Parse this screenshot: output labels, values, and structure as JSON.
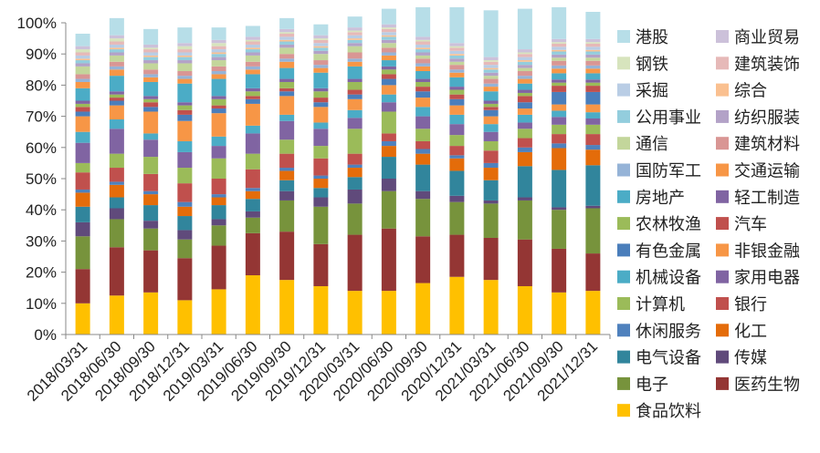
{
  "chart_data": {
    "type": "bar",
    "stacked": true,
    "normalized": true,
    "y_unit": "%",
    "ylim": [
      0,
      100
    ],
    "y_ticks": [
      "0%",
      "10%",
      "20%",
      "30%",
      "40%",
      "50%",
      "60%",
      "70%",
      "80%",
      "90%",
      "100%"
    ],
    "grid": false,
    "legend_position": "right",
    "categories": [
      "2018/03/31",
      "2018/06/30",
      "2018/09/30",
      "2018/12/31",
      "2019/03/31",
      "2019/06/30",
      "2019/09/30",
      "2019/12/31",
      "2020/03/31",
      "2020/06/30",
      "2020/09/30",
      "2020/12/31",
      "2021/03/31",
      "2021/06/30",
      "2021/09/30",
      "2021/12/31"
    ],
    "series": [
      {
        "name": "食品饮料",
        "color": "#ffc000",
        "values": [
          10,
          12.5,
          13.5,
          11,
          14.5,
          19,
          17.5,
          15.5,
          14,
          14,
          16.5,
          18.5,
          17.5,
          15.5,
          13.5,
          14
        ]
      },
      {
        "name": "医药生物",
        "color": "#943634",
        "values": [
          11,
          15.5,
          13.5,
          13.5,
          14,
          13.5,
          15.5,
          13.5,
          18,
          20,
          15,
          13.5,
          13.5,
          15,
          14,
          12
        ]
      },
      {
        "name": "电子",
        "color": "#77933c",
        "values": [
          10.5,
          9,
          7,
          6,
          6.5,
          5,
          10,
          12,
          10,
          12,
          12,
          10.5,
          11,
          12.5,
          12.5,
          14.5
        ]
      },
      {
        "name": "传媒",
        "color": "#604a7b",
        "values": [
          4.5,
          3.5,
          2.5,
          3,
          2,
          2,
          3,
          3,
          4.5,
          4,
          2.5,
          2,
          1,
          1,
          0.8,
          0.8
        ]
      },
      {
        "name": "电气设备",
        "color": "#31859c",
        "values": [
          5,
          3.5,
          5,
          4.5,
          4.5,
          4,
          3.5,
          3,
          4,
          7,
          8.5,
          8,
          6.5,
          10,
          12,
          13
        ]
      },
      {
        "name": "化工",
        "color": "#e46c0a",
        "values": [
          4.5,
          4,
          3.5,
          3,
          2.5,
          2.5,
          3,
          3,
          3,
          3.5,
          3.5,
          4,
          4,
          4.5,
          7,
          5
        ]
      },
      {
        "name": "休闲服务",
        "color": "#4f81bd",
        "values": [
          1,
          1,
          1,
          1.5,
          1,
          1,
          1,
          1,
          1,
          1.5,
          1.5,
          1,
          1.5,
          1.5,
          1.5,
          1.5
        ]
      },
      {
        "name": "银行",
        "color": "#c0504d",
        "values": [
          5.5,
          4.5,
          5.5,
          6,
          5,
          6,
          4.5,
          5.5,
          3.5,
          2.5,
          2.5,
          3,
          4,
          3,
          3,
          3.5
        ]
      },
      {
        "name": "计算机",
        "color": "#9bbb59",
        "values": [
          3,
          4.5,
          5.5,
          5,
          6.5,
          5,
          4.5,
          4,
          8,
          7,
          4,
          3.5,
          3,
          3,
          3,
          3
        ]
      },
      {
        "name": "家用电器",
        "color": "#8064a2",
        "values": [
          6.5,
          8,
          5.5,
          5,
          4,
          6.5,
          6,
          5.5,
          3.5,
          3,
          4,
          3.5,
          3,
          2,
          2.5,
          2
        ]
      },
      {
        "name": "机械设备",
        "color": "#4bacc6",
        "values": [
          3.5,
          3,
          2,
          3.5,
          3,
          2.5,
          2,
          2,
          2.5,
          2.5,
          3,
          3,
          2.5,
          2.5,
          2,
          2
        ]
      },
      {
        "name": "非银金融",
        "color": "#f79646",
        "values": [
          5,
          4.5,
          7,
          6.5,
          7.5,
          7,
          6,
          5,
          3.5,
          3,
          3,
          3,
          2.5,
          2,
          2,
          2.5
        ]
      },
      {
        "name": "有色金属",
        "color": "#4a7ebb",
        "values": [
          1.5,
          1.5,
          1.5,
          2,
          1.5,
          1.5,
          1.5,
          1.5,
          1.5,
          2,
          2,
          2,
          2,
          2,
          4,
          4
        ]
      },
      {
        "name": "汽车",
        "color": "#c0504d",
        "values": [
          1.5,
          1,
          1.5,
          1.5,
          1,
          1,
          1,
          1.5,
          1.5,
          1.5,
          1.5,
          1.5,
          1,
          2,
          2,
          2
        ]
      },
      {
        "name": "农林牧渔",
        "color": "#9bbb59",
        "values": [
          1,
          1,
          1,
          1.5,
          2,
          1.5,
          2,
          2,
          2.5,
          1.5,
          1.5,
          1.5,
          1,
          1,
          1,
          1
        ]
      },
      {
        "name": "轻工制造",
        "color": "#8064a2",
        "values": [
          1,
          1,
          1,
          1,
          1,
          1,
          1,
          1,
          1,
          1,
          1,
          1,
          1,
          1,
          1,
          1
        ]
      },
      {
        "name": "房地产",
        "color": "#4bacc6",
        "values": [
          4,
          5,
          4.5,
          6,
          5.5,
          4.5,
          3.5,
          5,
          4,
          2,
          2.5,
          3,
          3,
          2,
          2,
          2
        ]
      },
      {
        "name": "交通运输",
        "color": "#f79646",
        "values": [
          2,
          2,
          1.5,
          1.5,
          1.5,
          1.5,
          2,
          1.5,
          1.5,
          1.5,
          1.5,
          1.5,
          1.5,
          1.5,
          1.5,
          1.5
        ]
      },
      {
        "name": "国防军工",
        "color": "#95b3d7",
        "values": [
          1,
          1,
          1,
          1,
          1,
          1,
          1,
          1,
          1,
          1,
          1,
          1,
          1,
          1,
          1,
          1
        ]
      },
      {
        "name": "建筑材料",
        "color": "#d99694",
        "values": [
          1.5,
          1.5,
          1.5,
          1.5,
          1.5,
          1.5,
          1.5,
          1.5,
          2,
          1.5,
          1.5,
          1.5,
          1.5,
          1.5,
          1.5,
          1.5
        ]
      },
      {
        "name": "通信",
        "color": "#c3d69b",
        "values": [
          2.5,
          2,
          2,
          2.5,
          2,
          2,
          2,
          2,
          2,
          1.5,
          1,
          1,
          1,
          1,
          1,
          1
        ]
      },
      {
        "name": "纺织服装",
        "color": "#b3a2c7",
        "values": [
          1,
          1,
          1,
          1,
          1,
          1,
          1,
          1,
          1,
          1,
          1,
          1,
          1,
          1,
          1,
          1
        ]
      },
      {
        "name": "公用事业",
        "color": "#93cddd",
        "values": [
          1,
          1,
          1,
          1,
          1,
          1,
          1,
          1,
          1,
          1,
          1,
          1,
          1,
          1,
          1,
          1
        ]
      },
      {
        "name": "综合",
        "color": "#fac090",
        "values": [
          0.5,
          0.5,
          0.5,
          0.5,
          0.5,
          0.5,
          0.5,
          0.5,
          0.5,
          0.5,
          0.5,
          0.5,
          0.5,
          0.5,
          0.5,
          0.5
        ]
      },
      {
        "name": "采掘",
        "color": "#b9cde5",
        "values": [
          1,
          1,
          1,
          1,
          1,
          1,
          1,
          1,
          1,
          1,
          1,
          1,
          1,
          1,
          1,
          1
        ]
      },
      {
        "name": "建筑装饰",
        "color": "#e6b9b8",
        "values": [
          1,
          1,
          1,
          1,
          1,
          1,
          1,
          1,
          1,
          1,
          1,
          1,
          1,
          1,
          1,
          1
        ]
      },
      {
        "name": "钢铁",
        "color": "#d7e4bd",
        "values": [
          1,
          1,
          0.5,
          1,
          1,
          0.5,
          0.5,
          0.5,
          0.5,
          0.5,
          0.5,
          0.5,
          0.5,
          0.5,
          0.5,
          0.5
        ]
      },
      {
        "name": "商业贸易",
        "color": "#ccc1da",
        "values": [
          1,
          1,
          1,
          1,
          1,
          1,
          1,
          1,
          1,
          1,
          1,
          1,
          1,
          1,
          1,
          1
        ]
      },
      {
        "name": "港股",
        "color": "#b7dee8",
        "values": [
          4,
          5.5,
          5,
          5,
          4,
          3.5,
          3.5,
          3.5,
          3.5,
          5,
          9.5,
          11.5,
          15,
          13,
          10.2,
          8.7
        ]
      }
    ]
  }
}
